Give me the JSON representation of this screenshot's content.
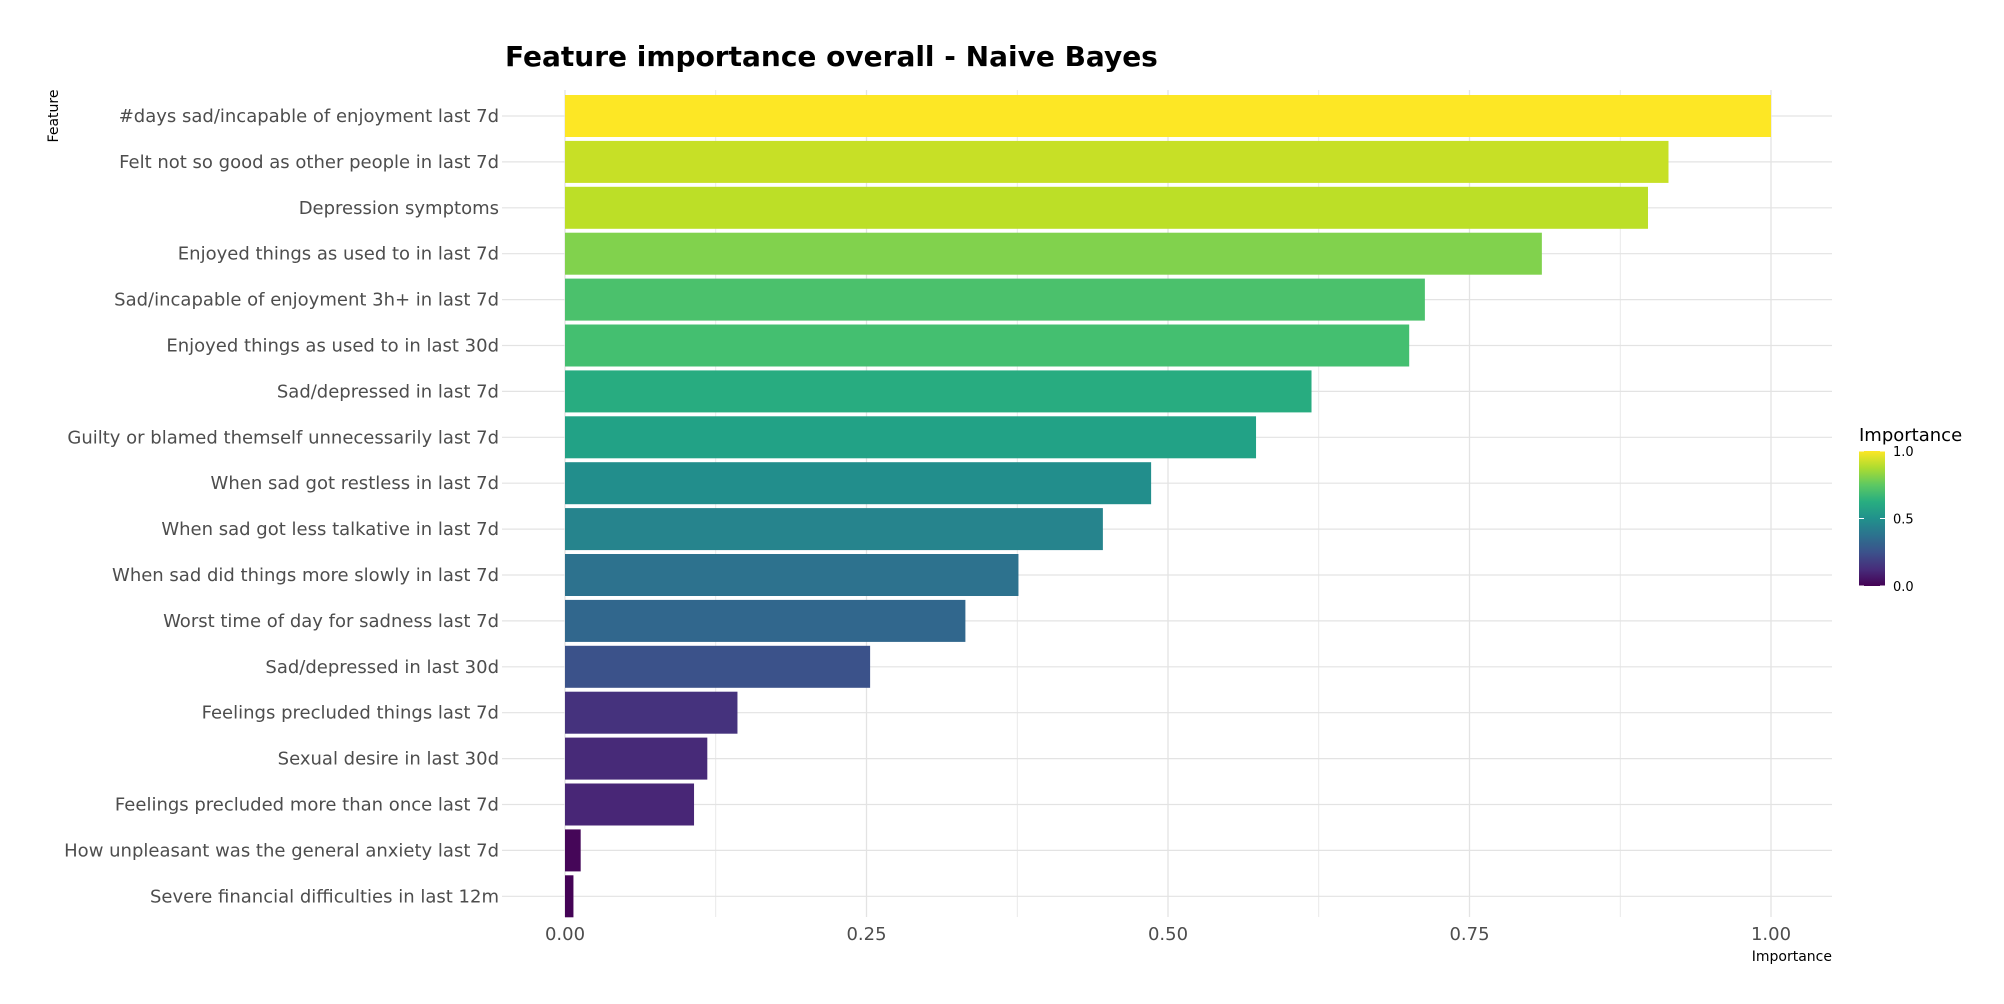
{
  "chart_data": {
    "type": "bar",
    "orientation": "horizontal",
    "title": "Feature importance overall - Naive Bayes",
    "xlabel": "Importance",
    "ylabel": "Feature",
    "xlim": [
      0,
      1.05
    ],
    "xticks": [
      0.0,
      0.25,
      0.5,
      0.75,
      1.0
    ],
    "xtick_labels": [
      "0.00",
      "0.25",
      "0.50",
      "0.75",
      "1.00"
    ],
    "grid": true,
    "categories": [
      "#days sad/incapable of enjoyment last 7d",
      "Felt not so good as other people in last 7d",
      "Depression symptoms",
      "Enjoyed things as used to in last 7d",
      "Sad/incapable of enjoyment 3h+ in last 7d",
      "Enjoyed things as used to in last 30d",
      "Sad/depressed in last 7d",
      "Guilty or blamed themself unnecessarily last 7d",
      "When sad got restless in last 7d",
      "When sad got less talkative in last 7d",
      "When sad did things more slowly in last 7d",
      "Worst time of day for sadness last 7d",
      "Sad/depressed in last 30d",
      "Feelings precluded things last 7d",
      "Sexual desire in last 30d",
      "Feelings precluded more than once last 7d",
      "How unpleasant was the general anxiety last 7d",
      "Severe financial difficulties in last 12m"
    ],
    "values": [
      1.0,
      0.915,
      0.898,
      0.81,
      0.713,
      0.7,
      0.619,
      0.573,
      0.486,
      0.446,
      0.376,
      0.332,
      0.253,
      0.143,
      0.118,
      0.107,
      0.013,
      0.007
    ],
    "legend": {
      "title": "Importance",
      "position": "right",
      "ticks": [
        0.0,
        0.5,
        1.0
      ],
      "tick_labels": [
        "0.0",
        "0.5",
        "1.0"
      ],
      "colormap": "viridis"
    }
  }
}
